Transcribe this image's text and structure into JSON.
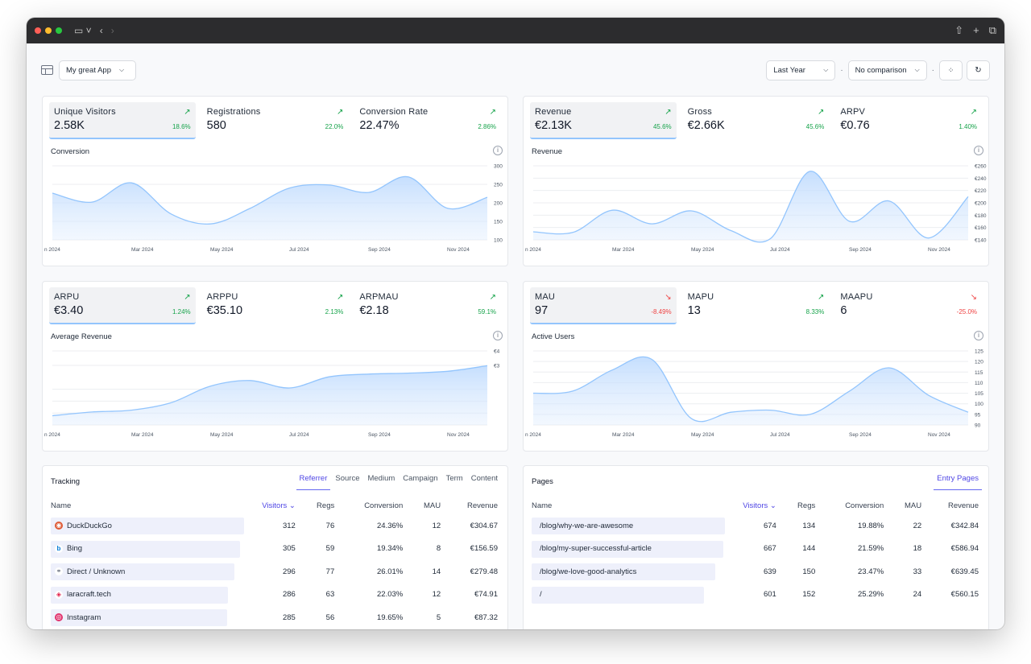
{
  "app": {
    "selector_label": "My great App"
  },
  "controls": {
    "period": "Last Year",
    "comparison": "No comparison",
    "sep": "·"
  },
  "cards": [
    {
      "metrics": [
        {
          "label": "Unique Visitors",
          "value": "2.58K",
          "pct": "18.6%",
          "dir": "up"
        },
        {
          "label": "Registrations",
          "value": "580",
          "pct": "22.0%",
          "dir": "up"
        },
        {
          "label": "Conversion Rate",
          "value": "22.47%",
          "pct": "2.86%",
          "dir": "up"
        }
      ],
      "chart_title": "Conversion",
      "chart": {
        "x_labels": [
          "n 2024",
          "Mar 2024",
          "May 2024",
          "Jul 2024",
          "Sep 2024",
          "Nov 2024"
        ],
        "y_ticks": [
          "300",
          "250",
          "200",
          "150",
          "100"
        ],
        "ymin": 100,
        "ymax": 300,
        "values": [
          226,
          202,
          254,
          170,
          143,
          185,
          240,
          248,
          228,
          270,
          185,
          215
        ]
      }
    },
    {
      "metrics": [
        {
          "label": "Revenue",
          "value": "€2.13K",
          "pct": "45.6%",
          "dir": "up"
        },
        {
          "label": "Gross",
          "value": "€2.66K",
          "pct": "45.6%",
          "dir": "up"
        },
        {
          "label": "ARPV",
          "value": "€0.76",
          "pct": "1.40%",
          "dir": "up"
        }
      ],
      "chart_title": "Revenue",
      "chart": {
        "x_labels": [
          "n 2024",
          "Mar 2024",
          "May 2024",
          "Jul 2024",
          "Sep 2024",
          "Nov 2024"
        ],
        "y_ticks": [
          "€260",
          "€240",
          "€220",
          "€200",
          "€180",
          "€160",
          "€140"
        ],
        "ymin": 140,
        "ymax": 260,
        "values": [
          153,
          152,
          188,
          166,
          187,
          155,
          142,
          251,
          170,
          203,
          143,
          210
        ]
      }
    },
    {
      "metrics": [
        {
          "label": "ARPU",
          "value": "€3.40",
          "pct": "1.24%",
          "dir": "up"
        },
        {
          "label": "ARPPU",
          "value": "€35.10",
          "pct": "2.13%",
          "dir": "up"
        },
        {
          "label": "ARPMAU",
          "value": "€2.18",
          "pct": "59.1%",
          "dir": "up"
        }
      ],
      "chart_title": "Average Revenue",
      "chart": {
        "x_labels": [
          "n 2024",
          "Mar 2024",
          "May 2024",
          "Jul 2024",
          "Sep 2024",
          "Nov 2024"
        ],
        "y_ticks": [
          "€4",
          "€3"
        ],
        "ymin": 0,
        "ymax": 4,
        "values": [
          0.5,
          0.7,
          0.8,
          1.2,
          2.1,
          2.4,
          2.0,
          2.6,
          2.75,
          2.8,
          2.9,
          3.2
        ]
      }
    },
    {
      "metrics": [
        {
          "label": "MAU",
          "value": "97",
          "pct": "-8.49%",
          "dir": "down"
        },
        {
          "label": "MAPU",
          "value": "13",
          "pct": "8.33%",
          "dir": "up"
        },
        {
          "label": "MAAPU",
          "value": "6",
          "pct": "-25.0%",
          "dir": "down"
        }
      ],
      "chart_title": "Active Users",
      "chart": {
        "x_labels": [
          "n 2024",
          "Mar 2024",
          "May 2024",
          "Jul 2024",
          "Sep 2024",
          "Nov 2024"
        ],
        "y_ticks": [
          "125",
          "120",
          "115",
          "110",
          "105",
          "100",
          "95",
          "90"
        ],
        "ymin": 90,
        "ymax": 125,
        "values": [
          105,
          106,
          116,
          121,
          93,
          96,
          97,
          95,
          106,
          117,
          104,
          96
        ]
      }
    }
  ],
  "tracking": {
    "title": "Tracking",
    "tabs": [
      "Referrer",
      "Source",
      "Medium",
      "Campaign",
      "Term",
      "Content"
    ],
    "columns": [
      "Name",
      "Visitors ⌄",
      "Regs",
      "Conversion",
      "MAU",
      "Revenue"
    ],
    "rows": [
      {
        "name": "DuckDuckGo",
        "icon": "duckduckgo-icon",
        "visitors": "312",
        "regs": "76",
        "conv": "24.36%",
        "mau": "12",
        "rev": "€304.67"
      },
      {
        "name": "Bing",
        "icon": "bing-icon",
        "visitors": "305",
        "regs": "59",
        "conv": "19.34%",
        "mau": "8",
        "rev": "€156.59"
      },
      {
        "name": "Direct / Unknown",
        "icon": "link-icon",
        "visitors": "296",
        "regs": "77",
        "conv": "26.01%",
        "mau": "14",
        "rev": "€279.48"
      },
      {
        "name": "laracraft.tech",
        "icon": "laracraft-icon",
        "visitors": "286",
        "regs": "63",
        "conv": "22.03%",
        "mau": "12",
        "rev": "€74.91"
      },
      {
        "name": "Instagram",
        "icon": "instagram-icon",
        "visitors": "285",
        "regs": "56",
        "conv": "19.65%",
        "mau": "5",
        "rev": "€87.32"
      }
    ]
  },
  "pages": {
    "title": "Pages",
    "tabs": [
      "Entry Pages"
    ],
    "columns": [
      "Name",
      "Visitors ⌄",
      "Regs",
      "Conversion",
      "MAU",
      "Revenue"
    ],
    "rows": [
      {
        "name": "/blog/why-we-are-awesome",
        "visitors": "674",
        "regs": "134",
        "conv": "19.88%",
        "mau": "22",
        "rev": "€342.84"
      },
      {
        "name": "/blog/my-super-successful-article",
        "visitors": "667",
        "regs": "144",
        "conv": "21.59%",
        "mau": "18",
        "rev": "€586.94"
      },
      {
        "name": "/blog/we-love-good-analytics",
        "visitors": "639",
        "regs": "150",
        "conv": "23.47%",
        "mau": "33",
        "rev": "€639.45"
      },
      {
        "name": "/",
        "visitors": "601",
        "regs": "152",
        "conv": "25.29%",
        "mau": "24",
        "rev": "€560.15"
      }
    ]
  }
}
